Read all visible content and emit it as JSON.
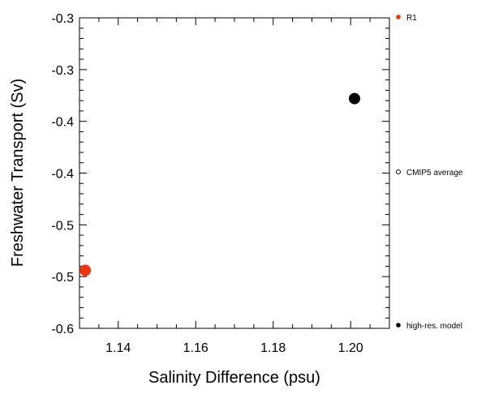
{
  "chart_data": {
    "type": "scatter",
    "xlabel": "Salinity Difference (psu)",
    "ylabel": "Freshwater Transport (Sv)",
    "xlim": [
      1.13,
      1.21
    ],
    "ylim": [
      -0.6,
      -0.3
    ],
    "x_ticks": [
      {
        "value": 1.14,
        "label": "1.14"
      },
      {
        "value": 1.16,
        "label": "1.16"
      },
      {
        "value": 1.18,
        "label": "1.18"
      },
      {
        "value": 1.2,
        "label": "1.20"
      }
    ],
    "y_ticks": [
      {
        "value": -0.3,
        "label": "-0.3"
      },
      {
        "value": -0.35,
        "label": "-0.3"
      },
      {
        "value": -0.4,
        "label": "-0.4"
      },
      {
        "value": -0.45,
        "label": "-0.4"
      },
      {
        "value": -0.5,
        "label": "-0.5"
      },
      {
        "value": -0.55,
        "label": "-0.5"
      },
      {
        "value": -0.6,
        "label": "-0.6"
      }
    ],
    "grid": false,
    "legend_position": "right",
    "legend": [
      {
        "label": "R1",
        "color": "#ee3311",
        "marker": "filled-circle"
      },
      {
        "label": "CMIP5 average",
        "color": "#000000",
        "marker": "open-circle"
      },
      {
        "label": "high-res. model",
        "color": "#000000",
        "marker": "filled-circle"
      }
    ],
    "series": [
      {
        "name": "R1",
        "color": "#ee3311",
        "marker": "filled-circle",
        "points": [
          {
            "x": 1.1315,
            "y": -0.544
          }
        ]
      },
      {
        "name": "high-res. model",
        "color": "#000000",
        "marker": "filled-circle",
        "points": [
          {
            "x": 1.201,
            "y": -0.378
          }
        ]
      }
    ]
  }
}
